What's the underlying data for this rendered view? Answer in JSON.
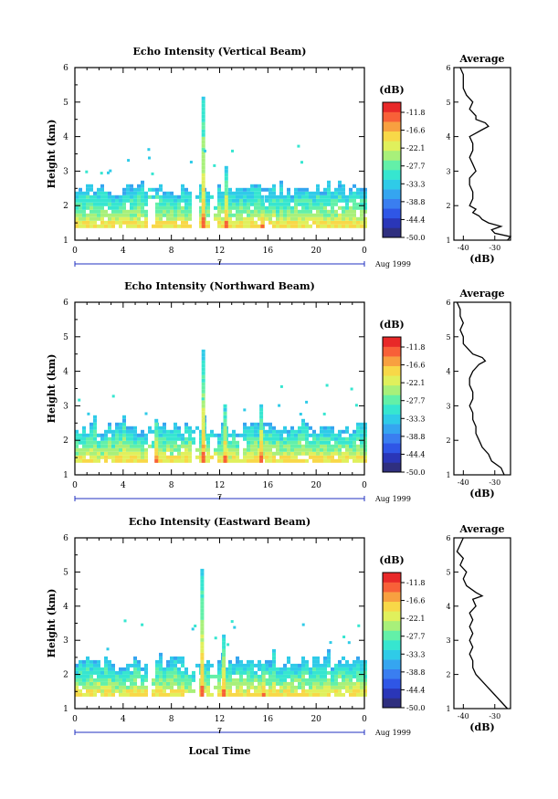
{
  "figure": {
    "xlabel": "Local Time",
    "colorbar_unit": "(dB)",
    "average_title": "Average",
    "average_xlabel": "(dB)"
  },
  "colors": {
    "colormap": [
      "#2f2f7f",
      "#2a36b8",
      "#2f56e6",
      "#3a7ef0",
      "#35a5f0",
      "#2fcbe8",
      "#36e6d0",
      "#63f0a8",
      "#a8f07a",
      "#e0f05c",
      "#f8d848",
      "#f8a040",
      "#f86038",
      "#e82828"
    ],
    "frame": "#000000",
    "axis_blue": "#2030c0"
  },
  "chart_data": [
    {
      "type": "heatmap",
      "title": "Echo Intensity (Vertical Beam)",
      "ylabel": "Height (km)",
      "xlim": [
        0,
        24
      ],
      "ylim": [
        1,
        6
      ],
      "xticks": [
        "0",
        "4",
        "8",
        "12",
        "16",
        "20",
        "0"
      ],
      "yticks": [
        "1",
        "2",
        "3",
        "4",
        "5",
        "6"
      ],
      "date_mark": "7",
      "date_label": "Aug 1999",
      "colorbar": {
        "unit": "(dB)",
        "ticks": [
          "-11.8",
          "-16.6",
          "-22.1",
          "-27.7",
          "-33.3",
          "-38.8",
          "-44.4",
          "-50.0"
        ]
      },
      "main_layer": {
        "top_km": 2.6,
        "base_km": 1.35
      },
      "plumes": [
        {
          "t": 10.5,
          "top": 5.1
        },
        {
          "t": 12.4,
          "top": 3.05
        },
        {
          "t": 15.4,
          "top": 2.2
        }
      ],
      "average_profile": {
        "title": "Average",
        "xlabel": "(dB)",
        "xlim": [
          -43,
          -25
        ],
        "xticks": [
          "-40",
          "-30"
        ],
        "yticks": [
          "1",
          "2",
          "3",
          "4",
          "5",
          "6"
        ],
        "height_km": [
          1.0,
          1.1,
          1.2,
          1.3,
          1.4,
          1.5,
          1.6,
          1.7,
          1.8,
          1.9,
          2.0,
          2.2,
          2.4,
          2.6,
          2.8,
          3.0,
          3.2,
          3.4,
          3.6,
          3.8,
          4.0,
          4.1,
          4.2,
          4.3,
          4.4,
          4.5,
          4.6,
          4.8,
          5.0,
          5.2,
          5.4,
          5.6,
          5.8,
          6.0
        ],
        "db": [
          -26,
          -25,
          -30,
          -31,
          -28,
          -32,
          -34,
          -35,
          -37,
          -36,
          -38,
          -37,
          -37,
          -38,
          -38,
          -36,
          -37,
          -38,
          -37,
          -37,
          -38,
          -36,
          -34,
          -32,
          -33,
          -36,
          -36,
          -38,
          -37,
          -39,
          -40,
          -40,
          -40,
          -41
        ]
      }
    },
    {
      "type": "heatmap",
      "title": "Echo Intensity (Northward Beam)",
      "ylabel": "Height (km)",
      "xlim": [
        0,
        24
      ],
      "ylim": [
        1,
        6
      ],
      "xticks": [
        "0",
        "4",
        "8",
        "12",
        "16",
        "20",
        "0"
      ],
      "yticks": [
        "1",
        "2",
        "3",
        "4",
        "5",
        "6"
      ],
      "date_mark": "7",
      "date_label": "Aug 1999",
      "colorbar": {
        "unit": "(dB)",
        "ticks": [
          "-11.8",
          "-16.6",
          "-22.1",
          "-27.7",
          "-33.3",
          "-38.8",
          "-44.4",
          "-50.0"
        ]
      },
      "main_layer": {
        "top_km": 2.5,
        "base_km": 1.35
      },
      "plumes": [
        {
          "t": 10.5,
          "top": 4.6
        },
        {
          "t": 12.3,
          "top": 3.0
        },
        {
          "t": 15.3,
          "top": 3.0
        },
        {
          "t": 6.6,
          "top": 2.6
        }
      ],
      "average_profile": {
        "title": "Average",
        "xlabel": "(dB)",
        "xlim": [
          -43,
          -25
        ],
        "xticks": [
          "-40",
          "-30"
        ],
        "yticks": [
          "1",
          "2",
          "3",
          "4",
          "5",
          "6"
        ],
        "height_km": [
          1.0,
          1.2,
          1.4,
          1.6,
          1.8,
          2.0,
          2.2,
          2.4,
          2.6,
          2.8,
          3.0,
          3.2,
          3.4,
          3.6,
          3.8,
          4.0,
          4.2,
          4.3,
          4.4,
          4.5,
          4.6,
          4.8,
          5.0,
          5.2,
          5.4,
          5.6,
          5.8,
          6.0
        ],
        "db": [
          -27,
          -28,
          -31,
          -32,
          -34,
          -35,
          -36,
          -36,
          -37,
          -37,
          -38,
          -37,
          -37,
          -38,
          -38,
          -37,
          -35,
          -33,
          -34,
          -37,
          -38,
          -40,
          -40,
          -41,
          -40,
          -41,
          -41,
          -42
        ]
      }
    },
    {
      "type": "heatmap",
      "title": "Echo Intensity (Eastward Beam)",
      "ylabel": "Height (km)",
      "xlim": [
        0,
        24
      ],
      "ylim": [
        1,
        6
      ],
      "xticks": [
        "0",
        "4",
        "8",
        "12",
        "16",
        "20",
        "0"
      ],
      "yticks": [
        "1",
        "2",
        "3",
        "4",
        "5",
        "6"
      ],
      "date_mark": "7",
      "date_label": "Aug 1999",
      "colorbar": {
        "unit": "(dB)",
        "ticks": [
          "-11.8",
          "-16.6",
          "-22.1",
          "-27.7",
          "-33.3",
          "-38.8",
          "-44.4",
          "-50.0"
        ]
      },
      "main_layer": {
        "top_km": 2.5,
        "base_km": 1.35
      },
      "plumes": [
        {
          "t": 10.4,
          "top": 5.0
        },
        {
          "t": 12.2,
          "top": 3.1
        },
        {
          "t": 15.5,
          "top": 2.3
        }
      ],
      "average_profile": {
        "title": "Average",
        "xlabel": "(dB)",
        "xlim": [
          -43,
          -25
        ],
        "xticks": [
          "-40",
          "-30"
        ],
        "yticks": [
          "1",
          "2",
          "3",
          "4",
          "5",
          "6"
        ],
        "height_km": [
          1.0,
          1.2,
          1.4,
          1.6,
          1.8,
          2.0,
          2.2,
          2.4,
          2.6,
          2.8,
          3.0,
          3.2,
          3.4,
          3.6,
          3.8,
          4.0,
          4.2,
          4.3,
          4.4,
          4.6,
          4.8,
          5.0,
          5.2,
          5.4,
          5.6,
          5.8,
          6.0
        ],
        "db": [
          -26,
          -28,
          -30,
          -32,
          -34,
          -36,
          -37,
          -37,
          -38,
          -37,
          -38,
          -37,
          -38,
          -37,
          -38,
          -36,
          -37,
          -34,
          -36,
          -39,
          -40,
          -39,
          -41,
          -40,
          -42,
          -41,
          -40
        ]
      }
    }
  ]
}
